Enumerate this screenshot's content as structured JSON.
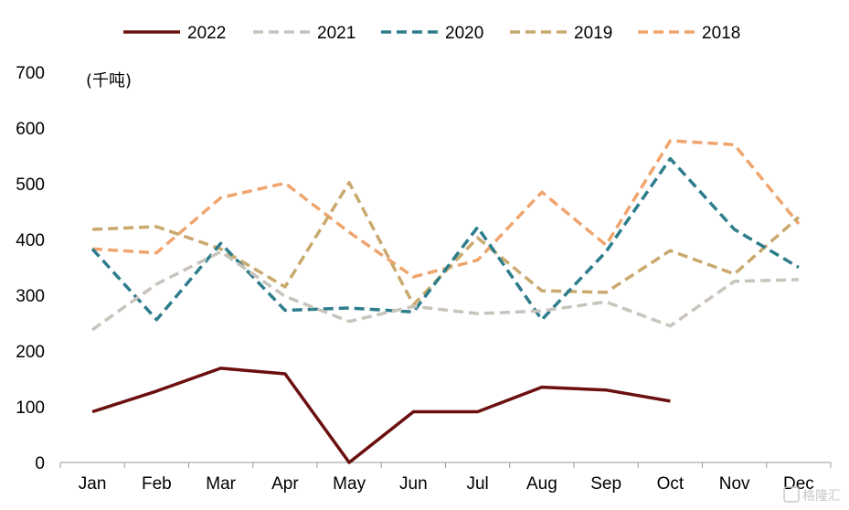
{
  "chart_data": {
    "type": "line",
    "unit_label": "(千吨)",
    "categories": [
      "Jan",
      "Feb",
      "Mar",
      "Apr",
      "May",
      "Jun",
      "Jul",
      "Aug",
      "Sep",
      "Oct",
      "Nov",
      "Dec"
    ],
    "ylim": [
      0,
      700
    ],
    "yticks": [
      "0",
      "100",
      "200",
      "300",
      "400",
      "500",
      "600",
      "700"
    ],
    "grid": false,
    "legend_position": "top",
    "series": [
      {
        "name": "2022",
        "color": "#6b0f0f",
        "dashed": false,
        "values": [
          91,
          128,
          169,
          159,
          0,
          91,
          91,
          135,
          130,
          110,
          null,
          null
        ]
      },
      {
        "name": "2021",
        "color": "#c8c4bc",
        "dashed": true,
        "values": [
          238,
          320,
          378,
          298,
          253,
          280,
          267,
          272,
          288,
          245,
          325,
          328
        ]
      },
      {
        "name": "2020",
        "color": "#2e7d8c",
        "dashed": true,
        "values": [
          383,
          256,
          393,
          273,
          277,
          270,
          422,
          256,
          378,
          545,
          418,
          350
        ]
      },
      {
        "name": "2019",
        "color": "#c9a96e",
        "dashed": true,
        "values": [
          418,
          423,
          383,
          315,
          502,
          283,
          403,
          308,
          305,
          380,
          338,
          440
        ]
      },
      {
        "name": "2018",
        "color": "#f0a56e",
        "dashed": true,
        "values": [
          383,
          376,
          475,
          501,
          413,
          333,
          363,
          485,
          390,
          577,
          570,
          428
        ]
      }
    ]
  },
  "watermark": "格隆汇"
}
